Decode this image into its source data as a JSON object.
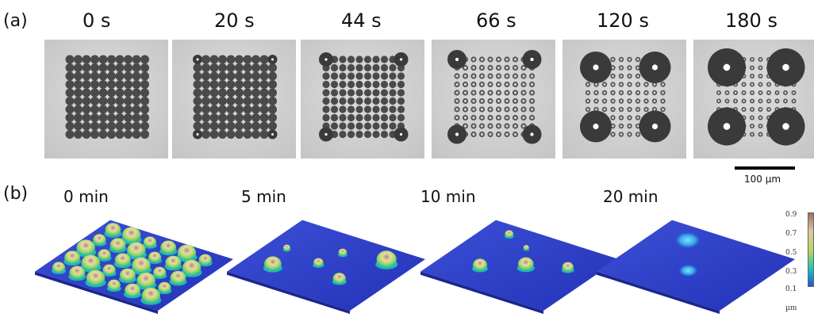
{
  "panel_a": {
    "label": "(a)",
    "frames": [
      {
        "time": "0 s",
        "phase": 0
      },
      {
        "time": "20 s",
        "phase": 1
      },
      {
        "time": "44 s",
        "phase": 2
      },
      {
        "time": "66 s",
        "phase": 3
      },
      {
        "time": "120 s",
        "phase": 4
      },
      {
        "time": "180 s",
        "phase": 5
      }
    ],
    "scale_bar_label": "100 µm"
  },
  "panel_b": {
    "label": "(b)",
    "frames": [
      {
        "time": "0 min"
      },
      {
        "time": "5 min"
      },
      {
        "time": "10 min"
      },
      {
        "time": "20 min"
      }
    ],
    "colorbar": {
      "ticks": [
        "0.9",
        "0.7",
        "0.5",
        "0.3",
        "0.1"
      ],
      "unit": "µm",
      "colors": [
        "#9b6f5f",
        "#d9c9a0",
        "#b8d85a",
        "#26c6b8",
        "#1f56d8"
      ]
    }
  }
}
